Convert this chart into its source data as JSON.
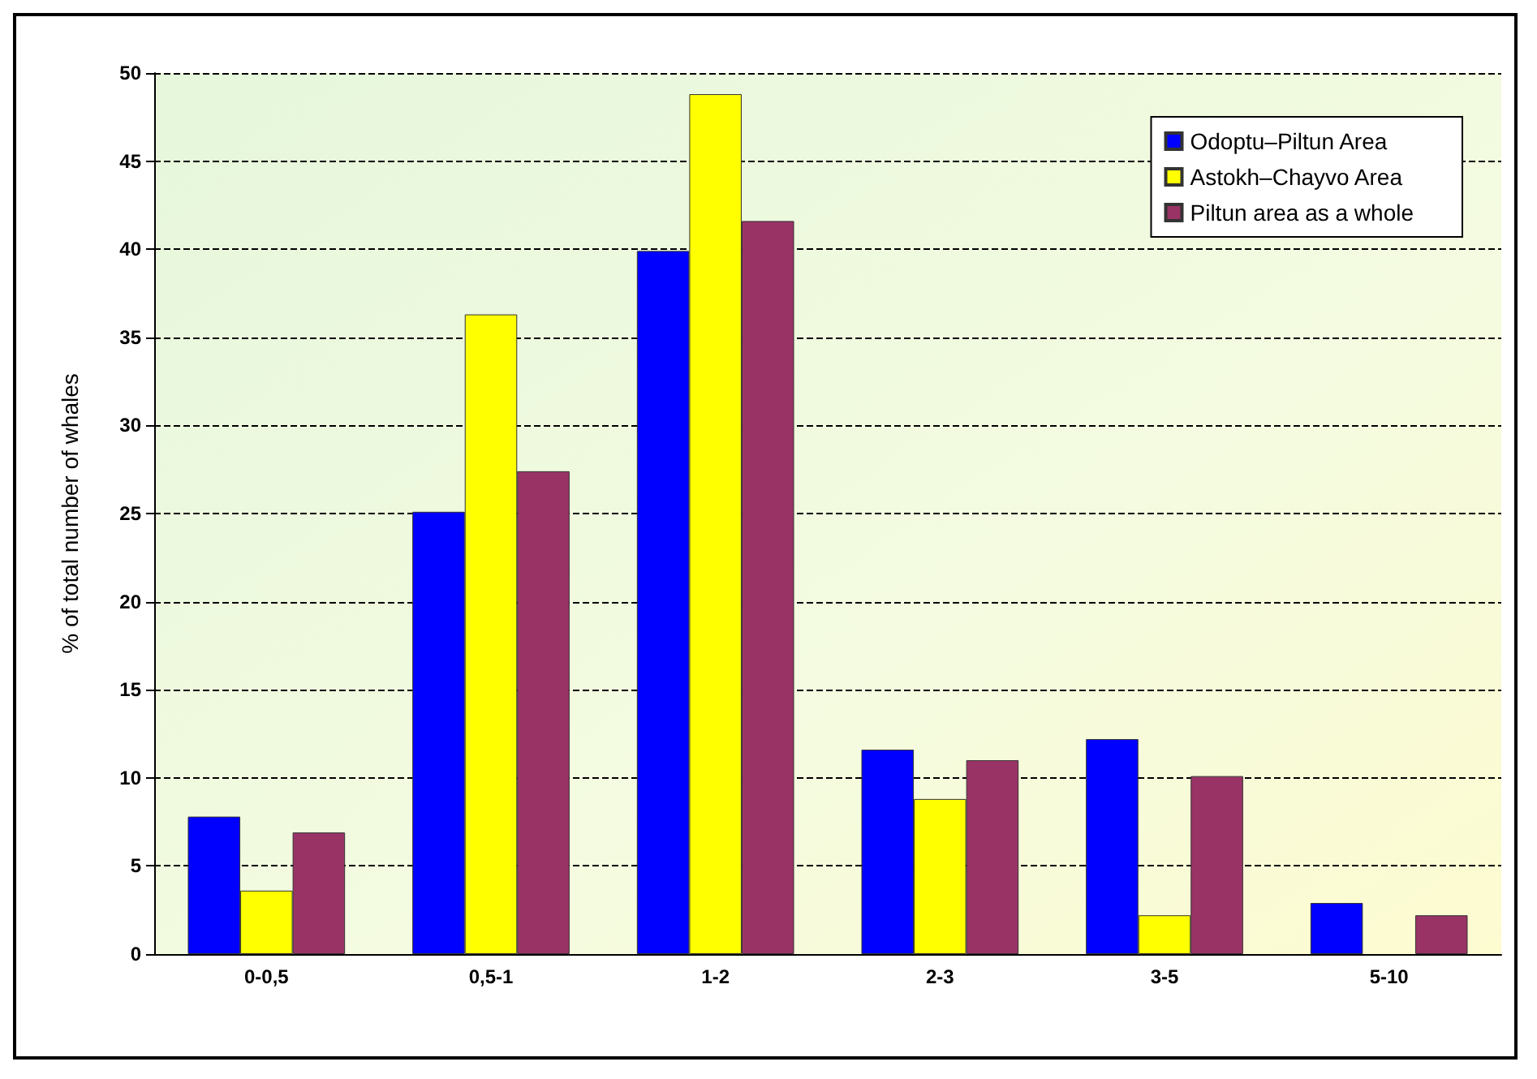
{
  "chart_data": {
    "type": "bar",
    "ylabel": "% of total number of whales",
    "categories": [
      "0-0,5",
      "0,5-1",
      "1-2",
      "2-3",
      "3-5",
      "5-10"
    ],
    "series": [
      {
        "name": "Odoptu–Piltun Area",
        "color": "#0000ff",
        "values": [
          7.8,
          25.1,
          39.9,
          11.6,
          12.2,
          2.9
        ]
      },
      {
        "name": "Astokh–Chayvo Area",
        "color": "#ffff00",
        "values": [
          3.6,
          36.3,
          48.8,
          8.8,
          2.2,
          null
        ]
      },
      {
        "name": "Piltun area as a whole",
        "color": "#993366",
        "values": [
          6.9,
          27.4,
          41.6,
          11.0,
          10.1,
          2.2
        ]
      }
    ],
    "ylim": [
      0,
      50
    ],
    "yticks": [
      0,
      5,
      10,
      15,
      20,
      25,
      30,
      35,
      40,
      45,
      50
    ],
    "grid": "y",
    "legend": "top right"
  }
}
